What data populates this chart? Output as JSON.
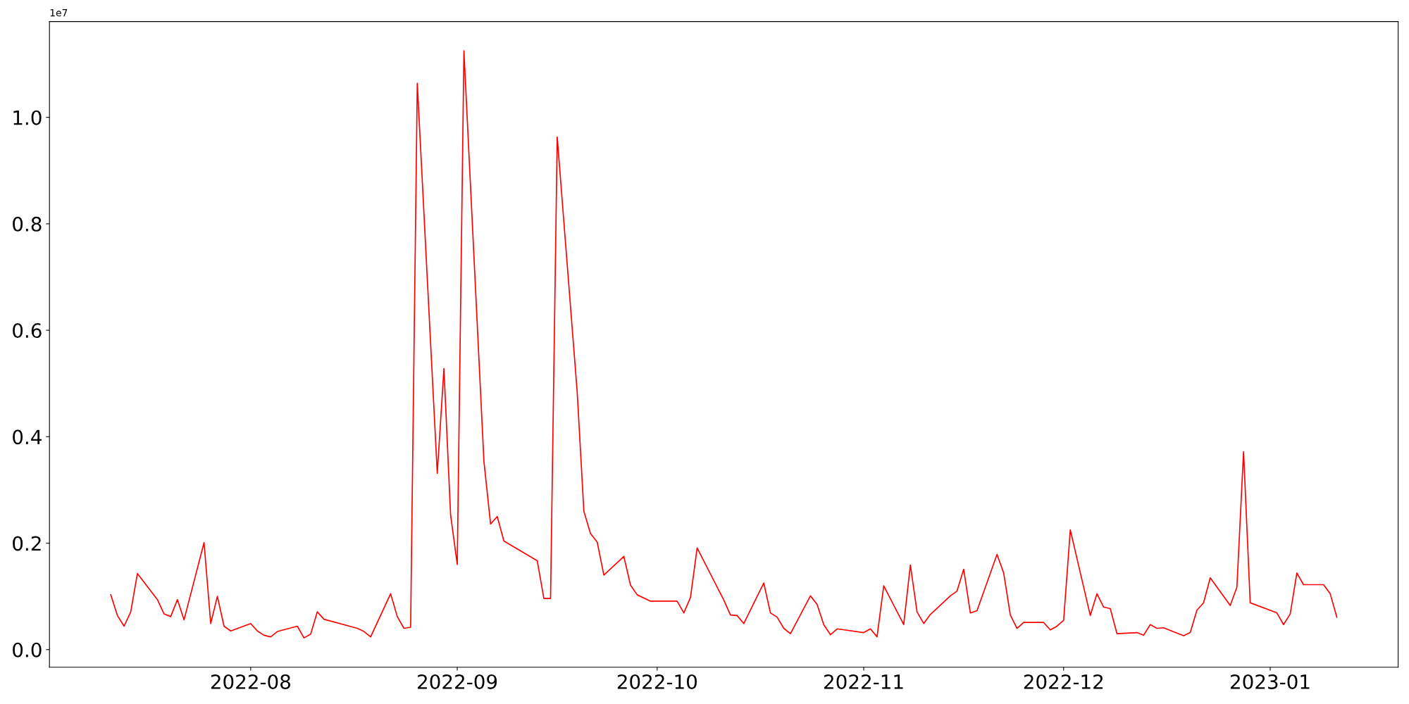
{
  "chart_data": {
    "type": "line",
    "x": [
      "2022-07-11",
      "2022-07-12",
      "2022-07-13",
      "2022-07-14",
      "2022-07-15",
      "2022-07-18",
      "2022-07-19",
      "2022-07-20",
      "2022-07-21",
      "2022-07-22",
      "2022-07-25",
      "2022-07-26",
      "2022-07-27",
      "2022-07-28",
      "2022-07-29",
      "2022-08-01",
      "2022-08-02",
      "2022-08-03",
      "2022-08-04",
      "2022-08-05",
      "2022-08-08",
      "2022-08-09",
      "2022-08-10",
      "2022-08-11",
      "2022-08-12",
      "2022-08-17",
      "2022-08-18",
      "2022-08-19",
      "2022-08-22",
      "2022-08-23",
      "2022-08-24",
      "2022-08-25",
      "2022-08-26",
      "2022-08-29",
      "2022-08-30",
      "2022-08-31",
      "2022-09-01",
      "2022-09-02",
      "2022-09-05",
      "2022-09-06",
      "2022-09-07",
      "2022-09-08",
      "2022-09-13",
      "2022-09-14",
      "2022-09-15",
      "2022-09-16",
      "2022-09-19",
      "2022-09-20",
      "2022-09-21",
      "2022-09-22",
      "2022-09-23",
      "2022-09-26",
      "2022-09-27",
      "2022-09-28",
      "2022-09-30",
      "2022-10-04",
      "2022-10-05",
      "2022-10-06",
      "2022-10-07",
      "2022-10-11",
      "2022-10-12",
      "2022-10-13",
      "2022-10-14",
      "2022-10-17",
      "2022-10-18",
      "2022-10-19",
      "2022-10-20",
      "2022-10-21",
      "2022-10-24",
      "2022-10-25",
      "2022-10-26",
      "2022-10-27",
      "2022-10-28",
      "2022-11-01",
      "2022-11-02",
      "2022-11-03",
      "2022-11-04",
      "2022-11-07",
      "2022-11-08",
      "2022-11-09",
      "2022-11-10",
      "2022-11-11",
      "2022-11-14",
      "2022-11-15",
      "2022-11-16",
      "2022-11-17",
      "2022-11-18",
      "2022-11-21",
      "2022-11-22",
      "2022-11-23",
      "2022-11-24",
      "2022-11-25",
      "2022-11-28",
      "2022-11-29",
      "2022-11-30",
      "2022-12-01",
      "2022-12-02",
      "2022-12-05",
      "2022-12-06",
      "2022-12-07",
      "2022-12-08",
      "2022-12-09",
      "2022-12-12",
      "2022-12-13",
      "2022-12-14",
      "2022-12-15",
      "2022-12-16",
      "2022-12-19",
      "2022-12-20",
      "2022-12-21",
      "2022-12-22",
      "2022-12-23",
      "2022-12-26",
      "2022-12-27",
      "2022-12-28",
      "2022-12-29",
      "2023-01-02",
      "2023-01-03",
      "2023-01-04",
      "2023-01-05",
      "2023-01-06",
      "2023-01-09",
      "2023-01-10",
      "2023-01-11"
    ],
    "series": [
      {
        "color": "#ff0000",
        "values": [
          0.103,
          0.064,
          0.044,
          0.071,
          0.143,
          0.094,
          0.067,
          0.062,
          0.094,
          0.056,
          0.201,
          0.049,
          0.1,
          0.044,
          0.035,
          0.049,
          0.035,
          0.027,
          0.024,
          0.034,
          0.044,
          0.022,
          0.029,
          0.071,
          0.057,
          0.04,
          0.034,
          0.024,
          0.105,
          0.062,
          0.04,
          0.042,
          1.064,
          0.331,
          0.528,
          0.253,
          0.16,
          1.125,
          0.354,
          0.236,
          0.25,
          0.204,
          0.167,
          0.096,
          0.096,
          0.963,
          0.484,
          0.26,
          0.218,
          0.202,
          0.14,
          0.175,
          0.121,
          0.103,
          0.091,
          0.091,
          0.069,
          0.098,
          0.191,
          0.093,
          0.065,
          0.064,
          0.049,
          0.125,
          0.069,
          0.061,
          0.04,
          0.03,
          0.101,
          0.085,
          0.047,
          0.028,
          0.039,
          0.032,
          0.039,
          0.024,
          0.12,
          0.047,
          0.159,
          0.071,
          0.049,
          0.066,
          0.101,
          0.11,
          0.151,
          0.069,
          0.073,
          0.179,
          0.144,
          0.065,
          0.04,
          0.051,
          0.051,
          0.037,
          0.044,
          0.055,
          0.225,
          0.064,
          0.105,
          0.08,
          0.077,
          0.03,
          0.032,
          0.027,
          0.047,
          0.04,
          0.041,
          0.026,
          0.032,
          0.074,
          0.088,
          0.135,
          0.083,
          0.117,
          0.372,
          0.088,
          0.069,
          0.047,
          0.067,
          0.144,
          0.122,
          0.122,
          0.105,
          0.061
        ]
      }
    ],
    "xlim": [
      "2022-07-01T19:12",
      "2023-01-20T04:48"
    ],
    "xticks": [
      {
        "value": "2022-08-01",
        "label": "2022-08"
      },
      {
        "value": "2022-09-01",
        "label": "2022-09"
      },
      {
        "value": "2022-10-01",
        "label": "2022-10"
      },
      {
        "value": "2022-11-01",
        "label": "2022-11"
      },
      {
        "value": "2022-12-01",
        "label": "2022-12"
      },
      {
        "value": "2023-01-01",
        "label": "2023-01"
      }
    ],
    "ylim": [
      -0.033,
      1.18
    ],
    "yticks": [
      {
        "value": 0,
        "label": "0.0"
      },
      0.2,
      0.4,
      0.6,
      0.8,
      {
        "value": 1,
        "label": "1.0"
      }
    ],
    "annotations": [
      "1e7"
    ],
    "grid": false,
    "marker": "none",
    "line_style": "solid"
  }
}
